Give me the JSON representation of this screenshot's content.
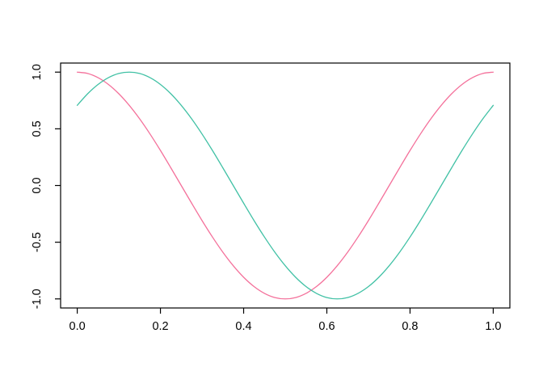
{
  "figure": {
    "background": "#ffffff",
    "axis_color": "#000000",
    "tick_label_color": "#000000"
  },
  "chart_data": {
    "type": "line",
    "title": "",
    "xlabel": "",
    "ylabel": "",
    "grid": false,
    "legend": "none",
    "xlim": [
      -0.04,
      1.04
    ],
    "ylim": [
      -1.08,
      1.08
    ],
    "x_ticks": {
      "values": [
        0,
        0.2,
        0.4,
        0.6,
        0.8,
        1
      ],
      "labels": [
        "0.0",
        "0.2",
        "0.4",
        "0.6",
        "0.8",
        "1.0"
      ]
    },
    "y_ticks": {
      "values": [
        -1,
        -0.5,
        0,
        0.5,
        1
      ],
      "labels": [
        "-1.0",
        "-0.5",
        "0.0",
        "0.5",
        "1.0"
      ]
    },
    "x": [
      0,
      0.025,
      0.05,
      0.075,
      0.1,
      0.125,
      0.15,
      0.175,
      0.2,
      0.225,
      0.25,
      0.275,
      0.3,
      0.325,
      0.35,
      0.375,
      0.4,
      0.425,
      0.45,
      0.475,
      0.5,
      0.525,
      0.55,
      0.575,
      0.6,
      0.625,
      0.65,
      0.675,
      0.7,
      0.725,
      0.75,
      0.775,
      0.8,
      0.825,
      0.85,
      0.875,
      0.9,
      0.925,
      0.95,
      0.975,
      1
    ],
    "series": [
      {
        "name": "pink-curve",
        "color": "#F4719B",
        "values": [
          1,
          0.988,
          0.951,
          0.891,
          0.809,
          0.707,
          0.588,
          0.454,
          0.309,
          0.156,
          0,
          -0.156,
          -0.309,
          -0.454,
          -0.588,
          -0.707,
          -0.809,
          -0.891,
          -0.951,
          -0.988,
          -1,
          -0.988,
          -0.951,
          -0.891,
          -0.809,
          -0.707,
          -0.588,
          -0.454,
          -0.309,
          -0.156,
          0,
          0.156,
          0.309,
          0.454,
          0.588,
          0.707,
          0.809,
          0.891,
          0.951,
          0.988,
          1
        ]
      },
      {
        "name": "teal-curve",
        "color": "#41C1A5",
        "values": [
          0.707,
          0.809,
          0.891,
          0.951,
          0.988,
          1,
          0.988,
          0.951,
          0.891,
          0.809,
          0.707,
          0.588,
          0.454,
          0.309,
          0.156,
          0,
          -0.156,
          -0.309,
          -0.454,
          -0.588,
          -0.707,
          -0.809,
          -0.891,
          -0.951,
          -0.988,
          -1,
          -0.988,
          -0.951,
          -0.891,
          -0.809,
          -0.707,
          -0.588,
          -0.454,
          -0.309,
          -0.156,
          0,
          0.156,
          0.309,
          0.454,
          0.588,
          0.707
        ]
      }
    ]
  }
}
